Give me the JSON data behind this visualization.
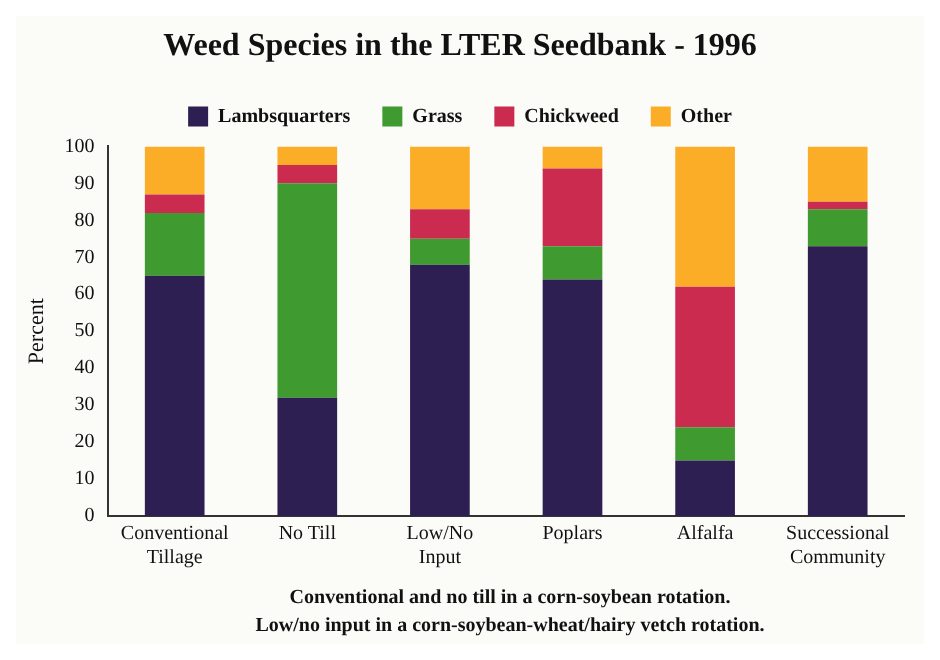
{
  "chart_data": {
    "type": "bar",
    "title": "Weed Species in the LTER Seedbank - 1996",
    "ylabel": "Percent",
    "categories": [
      "Conventional\nTillage",
      "No Till",
      "Low/No\nInput",
      "Poplars",
      "Alfalfa",
      "Successional\nCommunity"
    ],
    "stacked": true,
    "series": [
      {
        "name": "Lambsquarters",
        "color": "#2e1f52",
        "values": [
          65,
          32,
          68,
          64,
          15,
          73
        ]
      },
      {
        "name": "Grass",
        "color": "#3f9a2f",
        "values": [
          17,
          58,
          7,
          9,
          9,
          10
        ]
      },
      {
        "name": "Chickweed",
        "color": "#cc2b50",
        "values": [
          5,
          5,
          8,
          21,
          38,
          2
        ]
      },
      {
        "name": "Other",
        "color": "#fbad28",
        "values": [
          13,
          5,
          17,
          6,
          38,
          15
        ]
      }
    ],
    "ylim": [
      0,
      100
    ],
    "yticks": [
      0,
      10,
      20,
      30,
      40,
      50,
      60,
      70,
      80,
      90,
      100
    ],
    "legend": "top",
    "annotations": [
      "Conventional and no till in a corn-soybean rotation.",
      "Low/no input in a corn-soybean-wheat/hairy vetch rotation."
    ]
  }
}
